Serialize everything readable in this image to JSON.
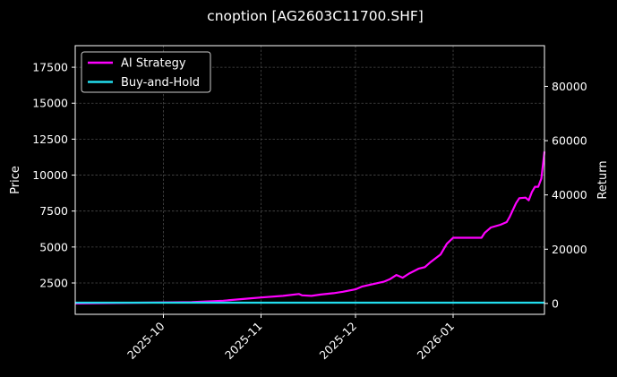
{
  "chart_data": {
    "type": "line",
    "title": "cnoption [AG2603C11700.SHF]",
    "xlabel": "",
    "ylabel": "Price",
    "ylabel_right": "Return",
    "x_tick_labels": [
      "2025-10",
      "2025-11",
      "2025-12",
      "2026-01"
    ],
    "x_tick_dates": [
      "2025-10-01",
      "2025-11-01",
      "2025-12-01",
      "2026-01-01"
    ],
    "xlim": [
      "2025-09-03",
      "2026-01-30"
    ],
    "ylim_left": [
      320,
      19000
    ],
    "ylim_right": [
      -4000,
      95000
    ],
    "yticks_left": [
      2500,
      5000,
      7500,
      10000,
      12500,
      15000,
      17500
    ],
    "yticks_right": [
      0,
      20000,
      40000,
      60000,
      80000
    ],
    "grid": true,
    "legend_position": "top-left",
    "background": "#000000",
    "series": [
      {
        "name": "AI Strategy",
        "axis": "right",
        "color": "#ff00ff",
        "x": [
          "2025-09-03",
          "2025-10-10",
          "2025-10-20",
          "2025-10-28",
          "2025-11-01",
          "2025-11-08",
          "2025-11-13",
          "2025-11-14",
          "2025-11-17",
          "2025-11-20",
          "2025-11-24",
          "2025-11-27",
          "2025-12-01",
          "2025-12-03",
          "2025-12-06",
          "2025-12-10",
          "2025-12-12",
          "2025-12-14",
          "2025-12-16",
          "2025-12-18",
          "2025-12-21",
          "2025-12-23",
          "2025-12-25",
          "2025-12-28",
          "2025-12-30",
          "2026-01-01",
          "2026-01-04",
          "2026-01-07",
          "2026-01-10",
          "2026-01-11",
          "2026-01-13",
          "2026-01-16",
          "2026-01-18",
          "2026-01-19",
          "2026-01-21",
          "2026-01-22",
          "2026-01-24",
          "2026-01-25",
          "2026-01-26",
          "2026-01-27",
          "2026-01-28",
          "2026-01-29",
          "2026-01-30"
        ],
        "values": [
          0,
          500,
          1000,
          1800,
          2200,
          2800,
          3500,
          3000,
          2800,
          3300,
          3800,
          4300,
          5200,
          6200,
          7000,
          8000,
          9000,
          10500,
          9500,
          11000,
          12800,
          13400,
          15400,
          18000,
          22000,
          24200,
          24200,
          24200,
          24200,
          26000,
          28000,
          29000,
          30000,
          32000,
          37000,
          38800,
          39000,
          38000,
          41000,
          43000,
          43000,
          46000,
          56000
        ]
      },
      {
        "name": "Buy-and-Hold",
        "axis": "right",
        "color": "#22ddee",
        "x": [
          "2025-09-03",
          "2026-01-30"
        ],
        "values": [
          300,
          300
        ]
      }
    ]
  }
}
